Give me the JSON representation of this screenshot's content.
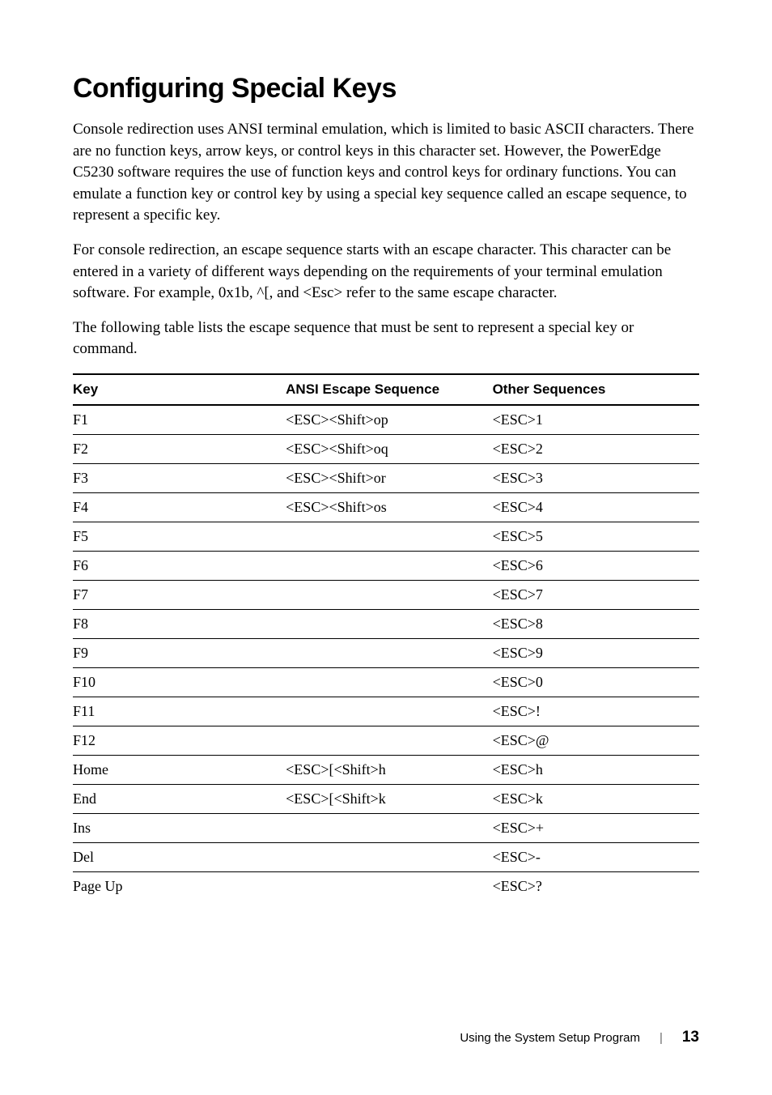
{
  "heading": "Configuring Special Keys",
  "para1": "Console redirection uses ANSI terminal emulation, which is limited to basic ASCII characters. There are no function keys, arrow keys, or control keys in this character set. However, the PowerEdge C5230 software requires the use of function keys and control keys for ordinary functions. You can emulate a function key or control key by using a special key sequence called an escape sequence, to represent a specific key.",
  "para2": "For console redirection, an escape sequence starts with an escape character. This character can be entered in a variety of different ways depending on the requirements of your terminal emulation software. For example, 0x1b, ^[, and <Esc> refer to the same escape character.",
  "para3": "The following table lists the escape sequence that must be sent to represent a special key or command.",
  "table": {
    "headers": {
      "key": "Key",
      "ansi": "ANSI Escape Sequence",
      "other": "Other Sequences"
    },
    "rows": [
      {
        "key": "F1",
        "ansi": "<ESC><Shift>op",
        "other": "<ESC>1"
      },
      {
        "key": "F2",
        "ansi": "<ESC><Shift>oq",
        "other": "<ESC>2"
      },
      {
        "key": "F3",
        "ansi": "<ESC><Shift>or",
        "other": "<ESC>3"
      },
      {
        "key": "F4",
        "ansi": "<ESC><Shift>os",
        "other": "<ESC>4"
      },
      {
        "key": "F5",
        "ansi": "",
        "other": "<ESC>5"
      },
      {
        "key": "F6",
        "ansi": "",
        "other": "<ESC>6"
      },
      {
        "key": "F7",
        "ansi": "",
        "other": "<ESC>7"
      },
      {
        "key": "F8",
        "ansi": "",
        "other": "<ESC>8"
      },
      {
        "key": "F9",
        "ansi": "",
        "other": "<ESC>9"
      },
      {
        "key": "F10",
        "ansi": "",
        "other": "<ESC>0"
      },
      {
        "key": "F11",
        "ansi": "",
        "other": "<ESC>!"
      },
      {
        "key": "F12",
        "ansi": "",
        "other": "<ESC>@"
      },
      {
        "key": "Home",
        "ansi": "<ESC>[<Shift>h",
        "other": "<ESC>h"
      },
      {
        "key": "End",
        "ansi": "<ESC>[<Shift>k",
        "other": "<ESC>k"
      },
      {
        "key": "Ins",
        "ansi": "",
        "other": "<ESC>+"
      },
      {
        "key": "Del",
        "ansi": "",
        "other": "<ESC>-"
      },
      {
        "key": "Page Up",
        "ansi": "",
        "other": "<ESC>?"
      }
    ]
  },
  "footer": {
    "section": "Using the System Setup Program",
    "page": "13"
  }
}
